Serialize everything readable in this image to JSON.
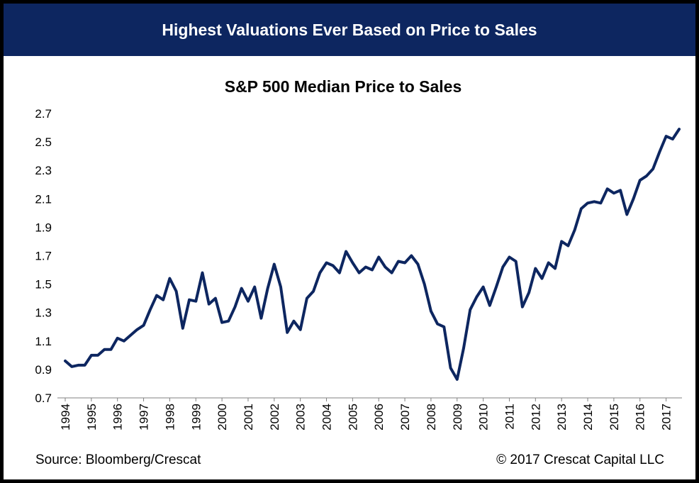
{
  "banner": {
    "title": "Highest Valuations Ever Based on Price to Sales"
  },
  "footer": {
    "source": "Source: Bloomberg/Crescat",
    "copyright": "© 2017 Crescat Capital LLC"
  },
  "colors": {
    "banner_bg": "#0d2660",
    "line": "#0d2660",
    "axis": "#808080"
  },
  "chart_data": {
    "type": "line",
    "title": "S&P 500 Median Price to Sales",
    "xlabel": "",
    "ylabel": "",
    "ylim": [
      0.7,
      2.7
    ],
    "xlim": [
      1994.0,
      2017.5
    ],
    "yticks": [
      "0.7",
      "0.9",
      "1.1",
      "1.3",
      "1.5",
      "1.7",
      "1.9",
      "2.1",
      "2.3",
      "2.5",
      "2.7"
    ],
    "xticks": [
      "1994",
      "1995",
      "1996",
      "1997",
      "1998",
      "1999",
      "2000",
      "2001",
      "2002",
      "2003",
      "2004",
      "2005",
      "2006",
      "2007",
      "2008",
      "2009",
      "2010",
      "2011",
      "2012",
      "2013",
      "2014",
      "2015",
      "2016",
      "2017"
    ],
    "grid": false,
    "legend": "none",
    "series": [
      {
        "x": [
          1994.0,
          1994.25,
          1994.5,
          1994.75,
          1995.0,
          1995.25,
          1995.5,
          1995.75,
          1996.0,
          1996.25,
          1996.5,
          1996.75,
          1997.0,
          1997.25,
          1997.5,
          1997.75,
          1998.0,
          1998.25,
          1998.5,
          1998.75,
          1999.0,
          1999.25,
          1999.5,
          1999.75,
          2000.0,
          2000.25,
          2000.5,
          2000.75,
          2001.0,
          2001.25,
          2001.5,
          2001.75,
          2002.0,
          2002.25,
          2002.5,
          2002.75,
          2003.0,
          2003.25,
          2003.5,
          2003.75,
          2004.0,
          2004.25,
          2004.5,
          2004.75,
          2005.0,
          2005.25,
          2005.5,
          2005.75,
          2006.0,
          2006.25,
          2006.5,
          2006.75,
          2007.0,
          2007.25,
          2007.5,
          2007.75,
          2008.0,
          2008.25,
          2008.5,
          2008.75,
          2009.0,
          2009.25,
          2009.5,
          2009.75,
          2010.0,
          2010.25,
          2010.5,
          2010.75,
          2011.0,
          2011.25,
          2011.5,
          2011.75,
          2012.0,
          2012.25,
          2012.5,
          2012.75,
          2013.0,
          2013.25,
          2013.5,
          2013.75,
          2014.0,
          2014.25,
          2014.5,
          2014.75,
          2015.0,
          2015.25,
          2015.5,
          2015.75,
          2016.0,
          2016.25,
          2016.5,
          2016.75,
          2017.0,
          2017.25,
          2017.5
        ],
        "values": [
          0.96,
          0.92,
          0.93,
          0.93,
          1.0,
          1.0,
          1.04,
          1.04,
          1.12,
          1.1,
          1.14,
          1.18,
          1.21,
          1.32,
          1.42,
          1.39,
          1.54,
          1.45,
          1.19,
          1.39,
          1.38,
          1.58,
          1.36,
          1.4,
          1.23,
          1.24,
          1.34,
          1.47,
          1.38,
          1.48,
          1.26,
          1.47,
          1.64,
          1.48,
          1.16,
          1.24,
          1.18,
          1.4,
          1.45,
          1.58,
          1.65,
          1.63,
          1.58,
          1.73,
          1.65,
          1.58,
          1.62,
          1.6,
          1.69,
          1.62,
          1.58,
          1.66,
          1.65,
          1.7,
          1.64,
          1.5,
          1.31,
          1.22,
          1.2,
          0.91,
          0.83,
          1.05,
          1.32,
          1.41,
          1.48,
          1.35,
          1.48,
          1.62,
          1.69,
          1.66,
          1.34,
          1.44,
          1.61,
          1.54,
          1.65,
          1.61,
          1.8,
          1.77,
          1.88,
          2.03,
          2.07,
          2.08,
          2.07,
          2.17,
          2.14,
          2.16,
          1.99,
          2.1,
          2.23,
          2.26,
          2.31,
          2.43,
          2.54,
          2.52,
          2.59
        ]
      }
    ]
  }
}
